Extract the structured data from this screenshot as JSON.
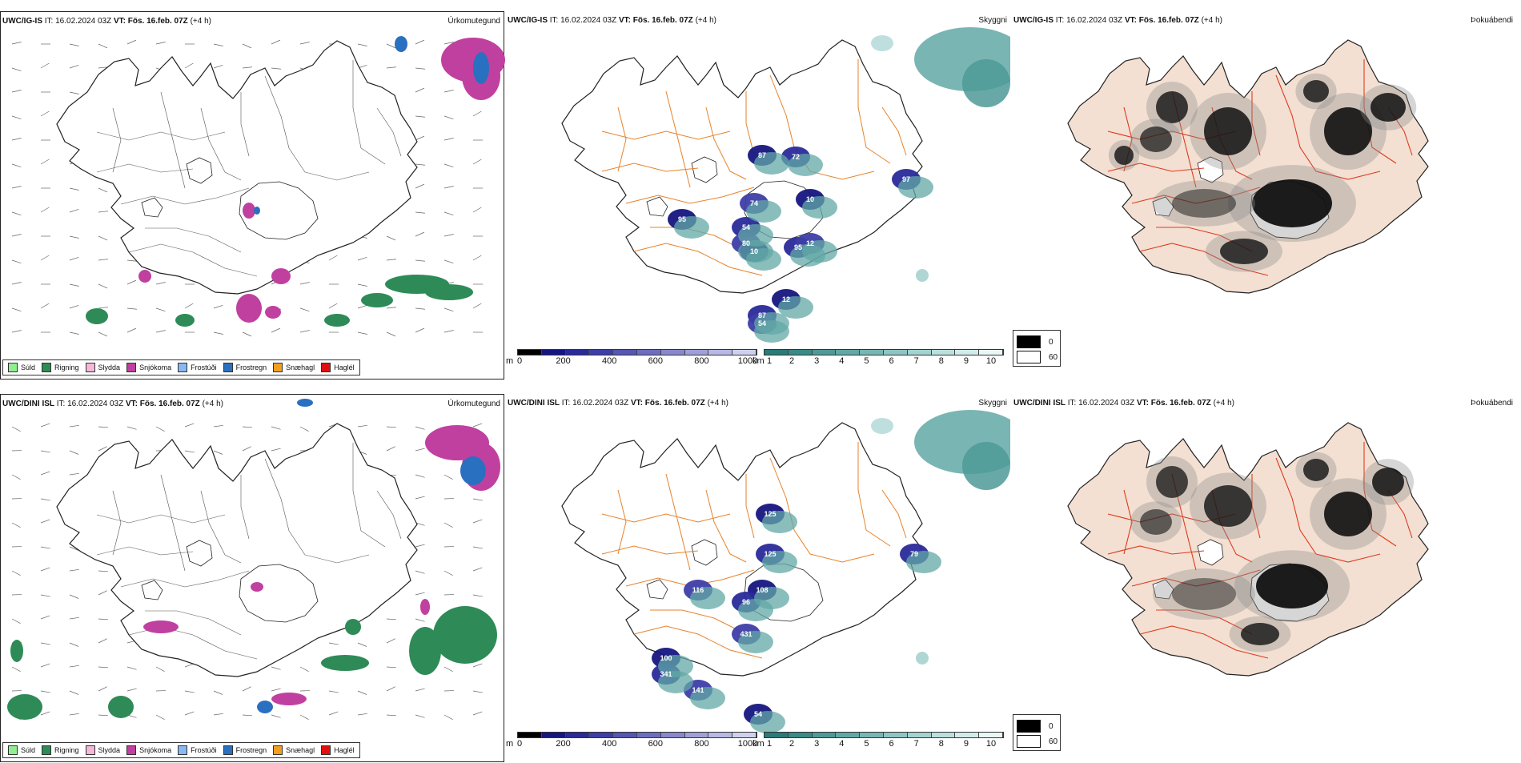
{
  "rows": [
    {
      "precip": {
        "model": "UWC/IG-IS",
        "it_label": "IT:",
        "it_value": "16.02.2024 03Z",
        "vt_label": "VT:",
        "vt_value": "Fös. 16.feb. 07Z",
        "lead": "(+4 h)",
        "variable": "Úrkomutegund"
      },
      "cloud": {
        "model": "UWC/IG-IS",
        "it_label": "IT:",
        "it_value": "16.02.2024 03Z",
        "vt_label": "VT:",
        "vt_value": "Fös. 16.feb. 07Z",
        "lead": "(+4 h)",
        "variable": "Skyggni",
        "labels": [
          "87",
          "72",
          "74",
          "95",
          "54",
          "80",
          "10",
          "95",
          "12",
          "12",
          "87",
          "54",
          "10",
          "97"
        ]
      },
      "fog": {
        "model": "UWC/IG-IS",
        "it_label": "IT:",
        "it_value": "16.02.2024 03Z",
        "vt_label": "VT:",
        "vt_value": "Fös. 16.feb. 07Z",
        "lead": "(+4 h)",
        "variable": "Þokuábendi"
      }
    },
    {
      "precip": {
        "model": "UWC/DINI ISL",
        "it_label": "IT:",
        "it_value": "16.02.2024 03Z",
        "vt_label": "VT:",
        "vt_value": "Fös. 16.feb. 07Z",
        "lead": "(+4 h)",
        "variable": "Úrkomutegund"
      },
      "cloud": {
        "model": "UWC/DINI ISL",
        "it_label": "IT:",
        "it_value": "16.02.2024 03Z",
        "vt_label": "VT:",
        "vt_value": "Fös. 16.feb. 07Z",
        "lead": "(+4 h)",
        "variable": "Skyggni",
        "labels": [
          "125",
          "125",
          "116",
          "108",
          "96",
          "431",
          "100",
          "341",
          "141",
          "54",
          "79"
        ]
      },
      "fog": {
        "model": "UWC/DINI ISL",
        "it_label": "IT:",
        "it_value": "16.02.2024 03Z",
        "vt_label": "VT:",
        "vt_value": "Fös. 16.feb. 07Z",
        "lead": "(+4 h)",
        "variable": "Þokuábendi"
      }
    }
  ],
  "precip_legend": [
    {
      "label": "Súld",
      "color": "#90ee90"
    },
    {
      "label": "Rigning",
      "color": "#2e8b57"
    },
    {
      "label": "Slydda",
      "color": "#f4b8d8"
    },
    {
      "label": "Snjókoma",
      "color": "#c040a0"
    },
    {
      "label": "Frostúði",
      "color": "#8ab8f0"
    },
    {
      "label": "Frostregn",
      "color": "#2a70c0"
    },
    {
      "label": "Snæhagl",
      "color": "#f0a020"
    },
    {
      "label": "Haglél",
      "color": "#e01010"
    }
  ],
  "ceiling_bar": {
    "unit": "m",
    "ticks": [
      "0",
      "200",
      "400",
      "600",
      "800",
      "1000"
    ],
    "colors": [
      "#000000",
      "#161680",
      "#2a2a9a",
      "#3e3ea8",
      "#5656b4",
      "#6e6ec0",
      "#8888cc",
      "#a0a0d8",
      "#b8b8e4",
      "#d0d0ee"
    ]
  },
  "visibility_bar": {
    "unit": "km",
    "ticks": [
      "1",
      "2",
      "3",
      "4",
      "5",
      "6",
      "7",
      "8",
      "9",
      "10"
    ],
    "colors": [
      "#2a7a78",
      "#3a8a88",
      "#4e9a98",
      "#62a8a6",
      "#78b6b4",
      "#8ec4c2",
      "#a4d2d0",
      "#badfdd",
      "#d0ecea",
      "#e8f6f5"
    ]
  },
  "fog_legend": {
    "dark_label": "0",
    "light_label": "60",
    "dark_color": "#000000",
    "light_color": "#ffffff"
  },
  "colors": {
    "coast": "#222222",
    "roads_precip": "#555555",
    "roads_cloud": "#e8822a",
    "roads_fog": "#e03c20",
    "land_fog": "#f3e0d2",
    "rivers": "#7a8cff"
  }
}
